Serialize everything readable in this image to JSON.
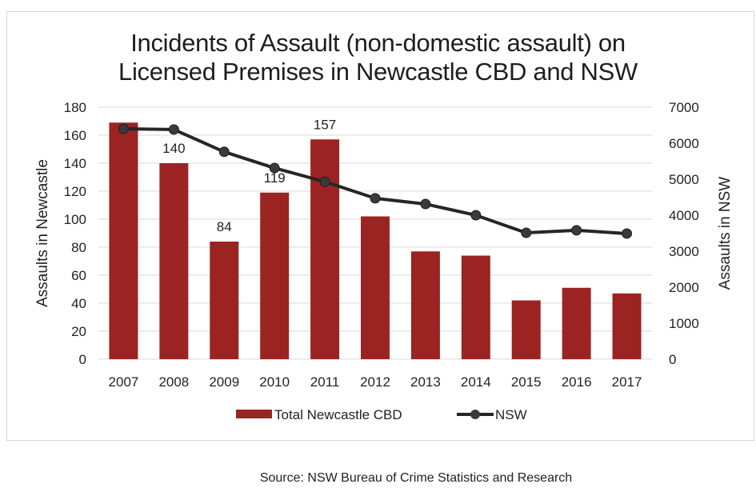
{
  "chart_data": {
    "type": "bar+line",
    "title_lines": [
      "Incidents of Assault (non-domestic assault) on",
      "Licensed Premises in Newcastle CBD and NSW"
    ],
    "categories": [
      "2007",
      "2008",
      "2009",
      "2010",
      "2011",
      "2012",
      "2013",
      "2014",
      "2015",
      "2016",
      "2017"
    ],
    "series": [
      {
        "name": "Total Newcastle CBD",
        "type": "bar",
        "axis": "left",
        "color": "#9b2423",
        "values": [
          169,
          140,
          84,
          119,
          157,
          102,
          77,
          74,
          42,
          51,
          47
        ],
        "data_labels": {
          "1": "140",
          "2": "84",
          "3": "119",
          "4": "157"
        }
      },
      {
        "name": "NSW",
        "type": "line",
        "axis": "right",
        "color": "#262626",
        "values": [
          6400,
          6380,
          5760,
          5310,
          4930,
          4470,
          4310,
          4000,
          3510,
          3580,
          3490
        ]
      }
    ],
    "ylabel": "Assaults in Newcastle",
    "y2label": "Assaults in NSW",
    "ylim": [
      0,
      180
    ],
    "y2lim": [
      0,
      7000
    ],
    "yticks": [
      "0",
      "20",
      "40",
      "60",
      "80",
      "100",
      "120",
      "140",
      "160",
      "180"
    ],
    "y2ticks": [
      "0",
      "1000",
      "2000",
      "3000",
      "4000",
      "5000",
      "6000",
      "7000"
    ],
    "grid": true,
    "legend_position": "bottom"
  },
  "source": "Source: NSW Bureau of Crime Statistics and Research"
}
